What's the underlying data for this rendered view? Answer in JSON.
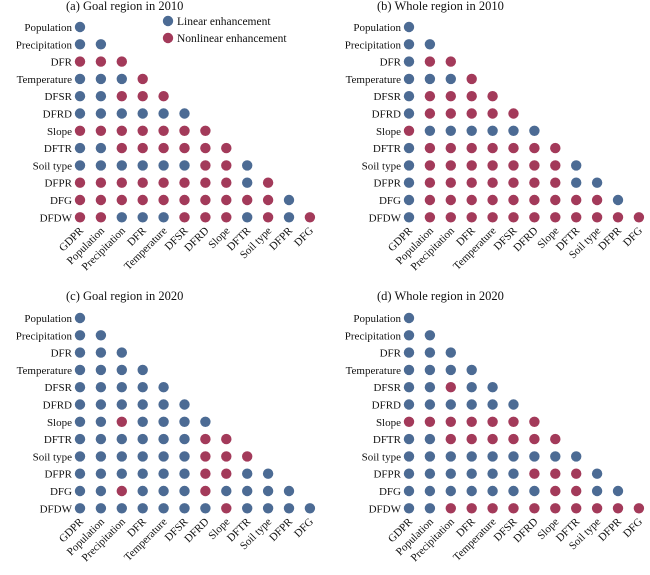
{
  "colors": {
    "linear": "#4c6b94",
    "nonlinear": "#a33a5a"
  },
  "legend": [
    {
      "key": "L",
      "label": "Linear enhancement",
      "color": "#4c6b94"
    },
    {
      "key": "N",
      "label": "Nonlinear enhancement",
      "color": "#a33a5a"
    }
  ],
  "chart_data": [
    {
      "type": "heatmap",
      "title": "(a) Goal region in 2010",
      "row_labels": [
        "Population",
        "Precipitation",
        "DFR",
        "Temperature",
        "DFSR",
        "DFRD",
        "Slope",
        "DFTR",
        "Soil type",
        "DFPR",
        "DFG",
        "DFDW"
      ],
      "col_labels": [
        "GDPR",
        "Population",
        "Precipitation",
        "DFR",
        "Temperature",
        "DFSR",
        "DFRD",
        "Slope",
        "DFTR",
        "Soil type",
        "DFPR",
        "DFG"
      ],
      "cells": [
        "L",
        "LL",
        "NNN",
        "LLLN",
        "LLNNN",
        "LLLLLL",
        "NNNNNNN",
        "LLNNNNNN",
        "LLLLLLNNL",
        "NNNNNNNNLN",
        "NNNNNNNNNNL",
        "NNLLLNNNLNLN"
      ]
    },
    {
      "type": "heatmap",
      "title": "(b) Whole region in 2010",
      "row_labels": [
        "Population",
        "Precipitation",
        "DFR",
        "Temperature",
        "DFSR",
        "DFRD",
        "Slope",
        "DFTR",
        "Soil type",
        "DFPR",
        "DFG",
        "DFDW"
      ],
      "col_labels": [
        "GDPR",
        "Population",
        "Precipitation",
        "DFR",
        "Temperature",
        "DFSR",
        "DFRD",
        "Slope",
        "DFTR",
        "Soil type",
        "DFPR",
        "DFG"
      ],
      "cells": [
        "L",
        "LL",
        "LNN",
        "LLLN",
        "LNNNN",
        "LNNNNN",
        "NLLLLLL",
        "LNNNNNNN",
        "LNNNNNNNL",
        "LNNNNNNNLL",
        "LNNNNNNNNNL",
        "LNNNNNNNNNNN"
      ]
    },
    {
      "type": "heatmap",
      "title": "(c) Goal region in 2020",
      "row_labels": [
        "Population",
        "Precipitation",
        "DFR",
        "Temperature",
        "DFSR",
        "DFRD",
        "Slope",
        "DFTR",
        "Soil type",
        "DFPR",
        "DFG",
        "DFDW"
      ],
      "col_labels": [
        "GDPR",
        "Population",
        "Precipitation",
        "DFR",
        "Temperature",
        "DFSR",
        "DFRD",
        "Slope",
        "DFTR",
        "Soil type",
        "DFPR",
        "DFG"
      ],
      "cells": [
        "L",
        "LL",
        "LLL",
        "LLLL",
        "LLLLL",
        "LLLLLL",
        "LLNLLLL",
        "LLLLLLNN",
        "LLLLLLNNN",
        "LLLLLLNNLL",
        "LLNLLLNLLLL",
        "LLLLLLLNLLLL"
      ]
    },
    {
      "type": "heatmap",
      "title": "(d) Whole region in 2020",
      "row_labels": [
        "Population",
        "Precipitation",
        "DFR",
        "Temperature",
        "DFSR",
        "DFRD",
        "Slope",
        "DFTR",
        "Soil type",
        "DFPR",
        "DFG",
        "DFDW"
      ],
      "col_labels": [
        "GDPR",
        "Population",
        "Precipitation",
        "DFR",
        "Temperature",
        "DFSR",
        "DFRD",
        "Slope",
        "DFTR",
        "Soil type",
        "DFPR",
        "DFG"
      ],
      "cells": [
        "L",
        "LL",
        "LLL",
        "LLLL",
        "LLNLL",
        "LLLLLL",
        "NNNNNNN",
        "LLNNNNNN",
        "LLLLLLLLL",
        "LLLLLLNNNL",
        "LLLLLLLNNLL",
        "LLNNNNNNNNNN"
      ]
    }
  ]
}
